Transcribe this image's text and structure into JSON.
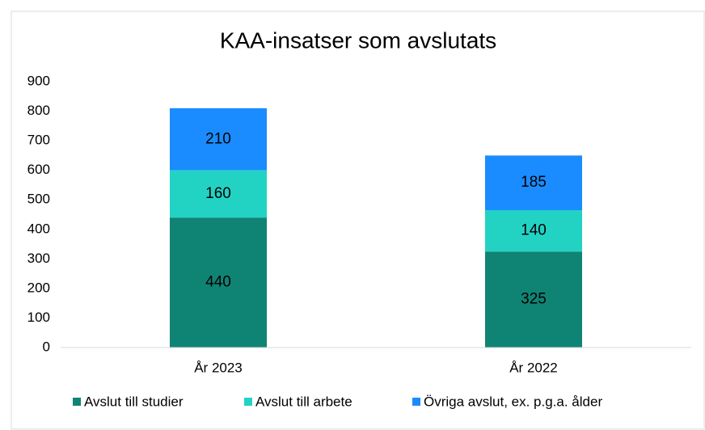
{
  "chart_data": {
    "type": "stacked_bar",
    "title": "KAA-insatser som avslutats",
    "categories": [
      "År 2023",
      "År 2022"
    ],
    "series": [
      {
        "name": "Avslut till studier",
        "color": "#0f8475",
        "values": [
          440,
          325
        ]
      },
      {
        "name": "Avslut till arbete",
        "color": "#22d3c4",
        "values": [
          160,
          140
        ]
      },
      {
        "name": "Övriga avslut, ex. p.g.a. ålder",
        "color": "#1a8cff",
        "values": [
          210,
          185
        ]
      }
    ],
    "ylim": [
      0,
      900
    ],
    "yticks": [
      0,
      100,
      200,
      300,
      400,
      500,
      600,
      700,
      800,
      900
    ],
    "legend": "bottom",
    "grid": false
  }
}
